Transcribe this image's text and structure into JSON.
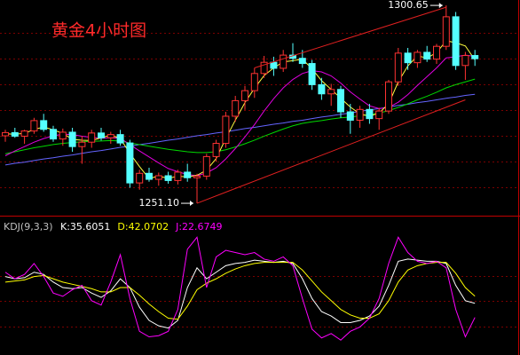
{
  "chart_data": [
    {
      "type": "candlestick",
      "title": "黄金4小时图",
      "ylim": [
        1248,
        1302
      ],
      "up_color": "#ff3232",
      "down_color": "#54ffff",
      "open": [
        1268.0,
        1268.8,
        1267.9,
        1269.2,
        1271.8,
        1269.6,
        1267.2,
        1268.9,
        1265.3,
        1266.4,
        1268.7,
        1267.5,
        1268.3,
        1266.2,
        1256.2,
        1258.6,
        1257.1,
        1258.0,
        1256.8,
        1258.9,
        1257.5,
        1257.9,
        1262.8,
        1266.1,
        1272.9,
        1276.8,
        1279.3,
        1283.6,
        1286.4,
        1284.9,
        1288.2,
        1287.4,
        1286.1,
        1280.8,
        1278.5,
        1279.6,
        1274.0,
        1271.9,
        1274.6,
        1272.3,
        1274.2,
        1281.5,
        1288.7,
        1286.3,
        1288.9,
        1287.2,
        1290.4,
        1297.8,
        1285.6,
        1288.1
      ],
      "high": [
        1269.5,
        1270.0,
        1269.5,
        1272.5,
        1273.5,
        1270.5,
        1269.8,
        1270.0,
        1268.0,
        1269.5,
        1270.0,
        1269.0,
        1269.5,
        1267.0,
        1259.5,
        1260.0,
        1258.8,
        1259.0,
        1259.5,
        1261.0,
        1258.5,
        1263.5,
        1267.0,
        1274.0,
        1278.0,
        1280.5,
        1285.0,
        1288.0,
        1287.8,
        1289.5,
        1291.2,
        1289.5,
        1287.0,
        1282.5,
        1281.0,
        1280.5,
        1276.0,
        1275.5,
        1276.0,
        1275.0,
        1282.0,
        1290.0,
        1290.0,
        1289.5,
        1290.5,
        1291.0,
        1300.65,
        1299.0,
        1289.0,
        1289.5
      ],
      "low": [
        1266.5,
        1267.5,
        1266.0,
        1268.5,
        1269.0,
        1266.5,
        1265.5,
        1264.0,
        1261.0,
        1265.0,
        1266.8,
        1266.0,
        1265.5,
        1255.0,
        1254.5,
        1256.5,
        1255.5,
        1256.0,
        1255.8,
        1256.5,
        1251.1,
        1257.0,
        1261.5,
        1265.0,
        1271.5,
        1274.5,
        1277.5,
        1282.5,
        1283.0,
        1284.0,
        1286.5,
        1285.0,
        1279.5,
        1277.0,
        1275.5,
        1272.5,
        1268.5,
        1270.0,
        1271.0,
        1269.5,
        1273.5,
        1280.5,
        1284.5,
        1285.0,
        1286.5,
        1286.0,
        1289.5,
        1284.5,
        1282.0,
        1285.5
      ],
      "close": [
        1268.8,
        1267.9,
        1269.2,
        1271.8,
        1269.6,
        1267.2,
        1268.9,
        1265.3,
        1266.4,
        1268.7,
        1267.5,
        1268.3,
        1266.2,
        1256.2,
        1258.6,
        1257.1,
        1258.0,
        1256.8,
        1258.9,
        1257.5,
        1257.9,
        1262.8,
        1266.1,
        1272.9,
        1276.8,
        1279.3,
        1283.6,
        1286.4,
        1284.9,
        1288.2,
        1287.4,
        1286.1,
        1280.8,
        1278.5,
        1279.6,
        1274.0,
        1271.9,
        1274.6,
        1272.3,
        1274.2,
        1281.5,
        1288.7,
        1286.3,
        1288.9,
        1287.2,
        1290.4,
        1297.8,
        1285.6,
        1288.1,
        1287.3
      ],
      "series": [
        {
          "color": "#6464ff",
          "values": [
            1260.7,
            1261.1,
            1261.4,
            1261.8,
            1262.2,
            1262.5,
            1262.9,
            1263.2,
            1263.6,
            1264.0,
            1264.3,
            1264.7,
            1265.1,
            1265.4,
            1265.8,
            1266.1,
            1266.5,
            1266.9,
            1267.2,
            1267.6,
            1268.0,
            1268.3,
            1268.7,
            1269.0,
            1269.4,
            1269.8,
            1270.1,
            1270.5,
            1270.9,
            1271.2,
            1271.6,
            1271.9,
            1272.3,
            1272.7,
            1273.0,
            1273.4,
            1273.7,
            1274.1,
            1274.5,
            1274.8,
            1275.2,
            1275.6,
            1275.9,
            1276.3,
            1276.6,
            1277.0,
            1277.4,
            1277.7,
            1278.1,
            1278.4
          ]
        },
        {
          "color": "#00d800",
          "values": [
            1263.5,
            1264.0,
            1264.5,
            1265.0,
            1265.4,
            1265.8,
            1266.1,
            1266.3,
            1266.5,
            1266.6,
            1266.7,
            1266.8,
            1266.7,
            1266.2,
            1265.8,
            1265.4,
            1265.0,
            1264.6,
            1264.3,
            1264.0,
            1263.8,
            1263.8,
            1264.0,
            1264.5,
            1265.2,
            1266.0,
            1266.9,
            1267.9,
            1268.8,
            1269.7,
            1270.5,
            1271.1,
            1271.5,
            1271.8,
            1272.2,
            1272.5,
            1272.7,
            1273.0,
            1273.3,
            1273.7,
            1274.3,
            1275.1,
            1276.0,
            1277.0,
            1277.9,
            1278.9,
            1280.0,
            1280.8,
            1281.5,
            1282.2
          ]
        },
        {
          "color": "#e000e0",
          "values": [
            1263.0,
            1264.2,
            1265.3,
            1266.4,
            1267.3,
            1268.0,
            1268.4,
            1268.3,
            1267.9,
            1267.6,
            1267.4,
            1267.5,
            1267.4,
            1265.8,
            1264.2,
            1262.7,
            1261.2,
            1259.8,
            1259.0,
            1258.3,
            1258.0,
            1258.7,
            1260.0,
            1262.2,
            1264.8,
            1267.7,
            1270.8,
            1274.2,
            1277.3,
            1280.0,
            1282.1,
            1283.6,
            1284.3,
            1284.0,
            1283.0,
            1281.2,
            1279.0,
            1277.2,
            1275.5,
            1274.8,
            1275.1,
            1276.4,
            1278.3,
            1280.6,
            1282.8,
            1285.0,
            1287.5,
            1287.8,
            1288.2,
            1287.9
          ]
        },
        {
          "color": "#ffff40",
          "values": [
            1268.5,
            1268.4,
            1268.6,
            1269.6,
            1270.2,
            1269.5,
            1268.6,
            1267.1,
            1266.9,
            1266.8,
            1267.5,
            1268.2,
            1267.3,
            1263.6,
            1260.3,
            1257.3,
            1257.9,
            1257.3,
            1257.9,
            1257.7,
            1258.1,
            1259.4,
            1262.3,
            1267.3,
            1271.9,
            1276.3,
            1279.9,
            1283.1,
            1285.0,
            1286.5,
            1286.8,
            1287.2,
            1284.8,
            1281.8,
            1279.6,
            1277.4,
            1275.2,
            1273.5,
            1272.9,
            1273.7,
            1276.0,
            1281.5,
            1285.5,
            1288.0,
            1287.5,
            1288.8,
            1291.8,
            1291.3,
            1290.5,
            1287.0
          ]
        }
      ],
      "trendlines": [
        {
          "color": "#e02020",
          "from": [
            26,
            1285.0
          ],
          "to": [
            46,
            1300.2
          ]
        },
        {
          "color": "#e02020",
          "from": [
            20,
            1251.1
          ],
          "to": [
            48,
            1277.0
          ]
        }
      ],
      "annotations": [
        {
          "index": 46,
          "value": 1300.65,
          "label": "1300.65"
        },
        {
          "index": 20,
          "value": 1251.1,
          "label": "1251.10"
        }
      ]
    },
    {
      "type": "line",
      "title": "KDJ(9,3,3)",
      "ylim": [
        -10,
        110
      ],
      "series": [
        {
          "legend": "K:35.6051",
          "color": "#ffffff",
          "values": [
            60,
            58,
            59,
            64,
            62,
            55,
            50,
            49,
            50,
            45,
            41,
            47,
            58,
            50,
            32,
            20,
            15,
            13,
            20,
            50,
            68,
            58,
            64,
            70,
            72,
            73,
            75,
            74,
            73,
            74,
            72,
            58,
            40,
            28,
            24,
            18,
            18,
            20,
            24,
            33,
            52,
            74,
            76,
            75,
            74,
            74,
            72,
            52,
            38,
            35.6051
          ]
        },
        {
          "legend": "D:42.0702",
          "color": "#ffff00",
          "values": [
            55,
            56,
            57,
            60,
            61,
            58,
            55,
            53,
            51,
            49,
            46,
            46,
            50,
            50,
            43,
            35,
            28,
            22,
            21,
            33,
            48,
            54,
            58,
            63,
            67,
            70,
            72,
            73,
            73,
            73,
            73,
            66,
            56,
            46,
            38,
            30,
            25,
            22,
            22,
            26,
            38,
            55,
            66,
            70,
            72,
            73,
            73,
            63,
            50,
            42.0702
          ]
        },
        {
          "legend": "J:22.6749",
          "color": "#ff00ff",
          "values": [
            64,
            58,
            62,
            72,
            60,
            45,
            42,
            48,
            52,
            38,
            34,
            55,
            80,
            40,
            10,
            5,
            6,
            10,
            30,
            85,
            96,
            50,
            78,
            84,
            82,
            80,
            82,
            76,
            74,
            78,
            70,
            40,
            12,
            4,
            8,
            2,
            10,
            14,
            22,
            40,
            72,
            96,
            82,
            74,
            72,
            74,
            68,
            30,
            5,
            22.6749
          ]
        }
      ]
    }
  ]
}
